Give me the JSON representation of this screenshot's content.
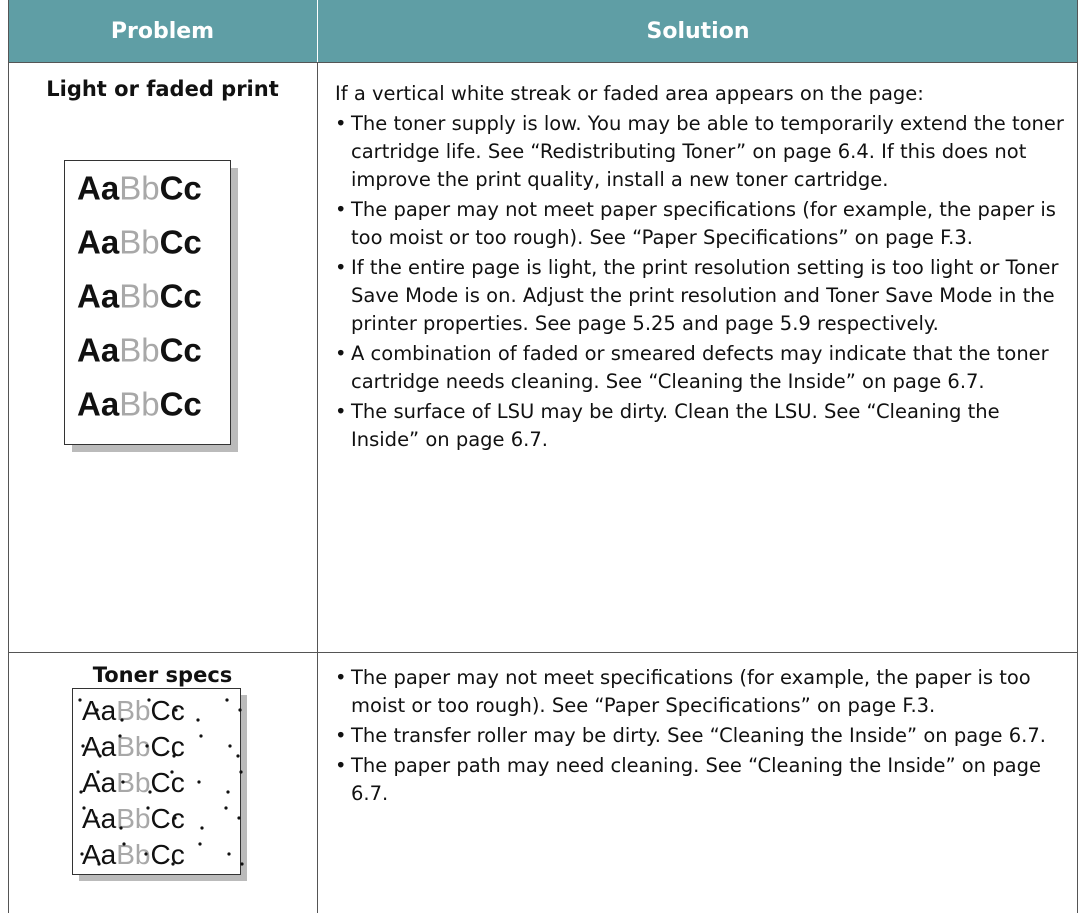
{
  "table": {
    "header": [
      "Problem",
      "Solution"
    ],
    "rows": [
      {
        "problem": "Light or faded print",
        "sample": [
          [
            "Aa",
            "Bb",
            "Cc"
          ],
          [
            "Aa",
            "Bb",
            "Cc"
          ],
          [
            "Aa",
            "Bb",
            "Cc"
          ],
          [
            "Aa",
            "Bb",
            "Cc"
          ],
          [
            "Aa",
            "Bb",
            "Cc"
          ]
        ],
        "intro": "If a vertical white streak or faded area appears on the page:",
        "bullets": [
          "The toner supply is low. You may be able to temporarily extend the toner cartridge life. See “Redistributing Toner” on page 6.4. If this does not improve the print quality, install a new toner cartridge.",
          "The paper may not meet paper specifications (for example, the paper is too moist or too rough). See “Paper Specifications” on page F.3.",
          "If the entire page is light, the print resolution setting is too light or Toner Save Mode is on. Adjust the print resolution and Toner Save Mode in the printer properties. See page 5.25 and page 5.9 respectively.",
          "A combination of faded or smeared defects may indicate that the toner cartridge needs cleaning. See “Cleaning the Inside” on page 6.7.",
          "The surface of LSU may be dirty. Clean the LSU. See “Cleaning the Inside” on page 6.7."
        ]
      },
      {
        "problem": "Toner specs",
        "sample": [
          [
            "Aa",
            "Bb",
            "Cc"
          ],
          [
            "Aa",
            "Bb",
            "Cc"
          ],
          [
            "Aa",
            "Bb",
            "Cc"
          ],
          [
            "Aa",
            "Bb",
            "Cc"
          ],
          [
            "Aa",
            "Bb",
            "Cc"
          ]
        ],
        "bullets": [
          "The paper may not meet specifications (for example, the paper is too moist or too rough). See “Paper Specifications” on page F.3.",
          "The transfer roller may be dirty. See “Cleaning the Inside” on page 6.7.",
          "The paper path may need cleaning. See “Cleaning the Inside” on page 6.7."
        ]
      }
    ]
  }
}
